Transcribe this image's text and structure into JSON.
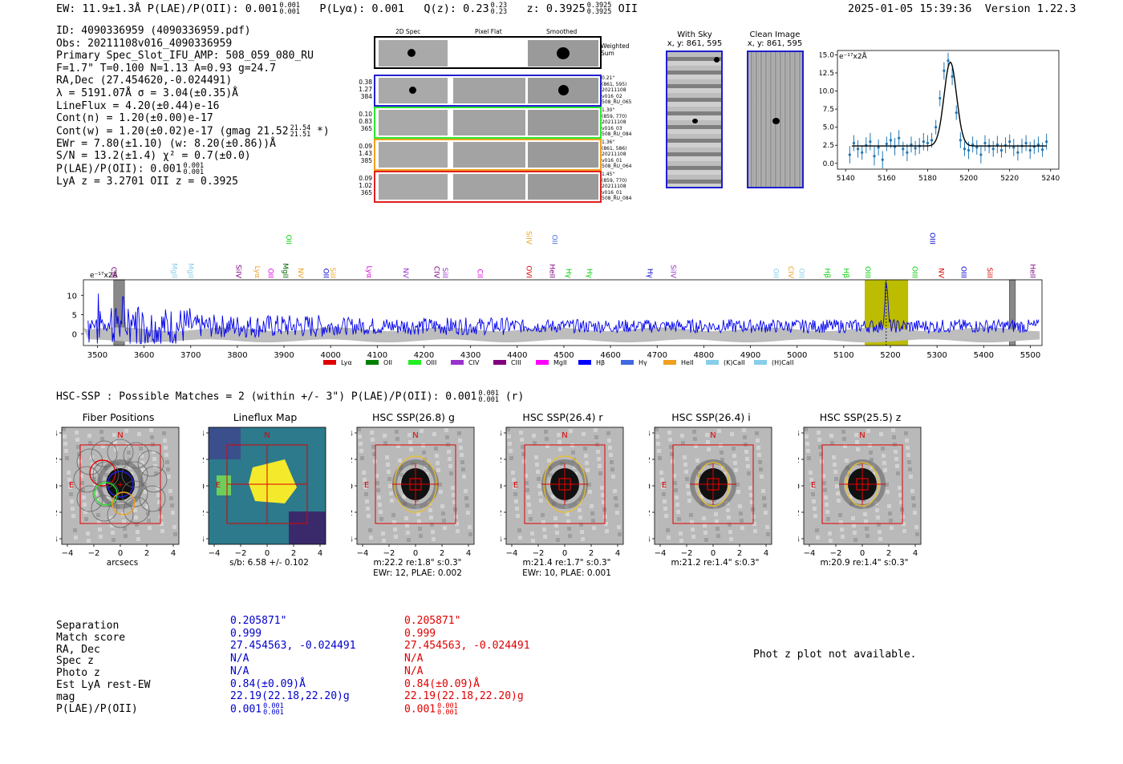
{
  "header": {
    "summary": "EW: 11.9±1.3Å   P(LAE)/P(OII): 0.001",
    "plae_frac": [
      "0.001",
      "0.001"
    ],
    "plya": "P(Lyα): 0.001",
    "qz": "Q(z): 0.23",
    "qz_frac": [
      "0.23",
      "0.23"
    ],
    "z": "z: 0.3925",
    "z_frac": [
      "0.3925",
      "0.3925"
    ],
    "z_line": "OII",
    "timestamp": "2025-01-05 15:39:36",
    "version": "Version 1.22.3"
  },
  "info": {
    "id": "ID: 4090336959 (4090336959.pdf)",
    "obs": "Obs: 20211108v016_4090336959",
    "primary": "Primary Spec_Slot_IFU_AMP: 508_059_080_RU",
    "params": "F=1.7\"  T=0.100  N=1.13  A=0.93  g=24.7",
    "radec": "RA,Dec (27.454620,-0.024491)",
    "lambda": "λ = 5191.07Å   σ = 3.04(±0.35)Å",
    "lineflux": "LineFlux = 4.20(±0.44)e-16",
    "contn": "Cont(n) = 1.20(±0.00)e-17",
    "contw": "Cont(w) = 1.20(±0.02)e-17 (gmag 21.52",
    "contw_frac": [
      "21.54",
      "21.51"
    ],
    "contw_end": "*)",
    "ewr": "EWr = 7.80(±1.10) (w: 8.20(±0.86))Å",
    "sn": "S/N = 13.2(±1.4)  χ² = 0.7(±0.0)",
    "plae": "P(LAE)/P(OII): 0.001",
    "plae_frac": [
      "0.001",
      "0.001"
    ],
    "lyaz": "LyA z = 3.2701   OII z = 0.3925"
  },
  "cutouts": {
    "headers": [
      "2D Spec",
      "Pixel Flat",
      "Smoothed"
    ],
    "weighted_label": "Weighted Sum",
    "rows": [
      {
        "left": [
          "0.38",
          "1.27",
          "384"
        ],
        "right": [
          "0.21\"",
          "(861, 595)",
          "20211108",
          "v016_02",
          "508_RU_065"
        ],
        "color": "#1f1fd0"
      },
      {
        "left": [
          "0.10",
          "0.83",
          "365"
        ],
        "right": [
          "1.30\"",
          "(859, 770)",
          "20211108",
          "v016_03",
          "508_RU_084"
        ],
        "color": "#2ee82e"
      },
      {
        "left": [
          "0.09",
          "1.43",
          "385"
        ],
        "right": [
          "1.36\"",
          "(861, 586)",
          "20211108",
          "v016_01",
          "508_RU_064"
        ],
        "color": "#f0a020"
      },
      {
        "left": [
          "0.09",
          "1.02",
          "365"
        ],
        "right": [
          "1.45\"",
          "(859, 770)",
          "20211108",
          "v016_01",
          "508_RU_084"
        ],
        "color": "#e02020"
      }
    ]
  },
  "sky": {
    "with_sky_title": "With Sky",
    "with_sky_xy": "x, y: 861, 595",
    "clean_title": "Clean Image",
    "clean_xy": "x, y: 861, 595"
  },
  "chart_data": [
    {
      "type": "scatter",
      "title": "",
      "ylabel": "e⁻¹⁷x2Å",
      "xlim": [
        5136,
        5244
      ],
      "ylim": [
        -0.8,
        15.6
      ],
      "xticks": [
        5140,
        5160,
        5180,
        5200,
        5220,
        5240
      ],
      "yticks": [
        0.0,
        2.5,
        5.0,
        7.5,
        10.0,
        12.5,
        15.0
      ],
      "ytick_labels": [
        "0.0",
        "2.5",
        "5.0",
        "7.5",
        "10.0",
        "12.5",
        "15.0"
      ],
      "fit": {
        "continuum": 2.4,
        "peak": 14.0,
        "center": 5191.07,
        "sigma": 3.04
      },
      "x": [
        5142,
        5144,
        5146,
        5148,
        5150,
        5152,
        5154,
        5156,
        5158,
        5160,
        5162,
        5164,
        5166,
        5168,
        5170,
        5172,
        5174,
        5176,
        5178,
        5180,
        5182,
        5184,
        5186,
        5188,
        5190,
        5192,
        5194,
        5196,
        5198,
        5200,
        5202,
        5204,
        5206,
        5208,
        5210,
        5212,
        5214,
        5216,
        5218,
        5220,
        5222,
        5224,
        5226,
        5228,
        5230,
        5232,
        5234,
        5236,
        5238
      ],
      "y": [
        1.2,
        2.8,
        2.0,
        1.5,
        2.5,
        3.0,
        1.0,
        2.2,
        0.5,
        2.7,
        3.2,
        2.3,
        3.5,
        2.0,
        1.5,
        2.6,
        2.1,
        2.4,
        3.0,
        2.8,
        3.2,
        5.0,
        9.0,
        12.8,
        14.2,
        12.0,
        7.0,
        3.2,
        2.0,
        1.8,
        2.6,
        2.2,
        1.2,
        2.8,
        2.4,
        2.0,
        2.6,
        1.8,
        2.5,
        3.0,
        2.2,
        1.5,
        2.4,
        2.8,
        1.8,
        2.3,
        2.6,
        1.9,
        3.0
      ],
      "yerr": [
        1.2,
        1.1,
        1.2,
        1.0,
        1.1,
        1.2,
        1.3,
        1.1,
        1.2,
        1.0,
        1.1,
        1.2,
        1.1,
        1.0,
        1.2,
        1.1,
        1.0,
        1.1,
        1.2,
        1.1,
        1.0,
        1.0,
        1.1,
        1.2,
        1.1,
        1.2,
        1.0,
        1.1,
        1.0,
        1.2,
        1.1,
        1.0,
        1.2,
        1.1,
        1.0,
        1.1,
        1.2,
        1.0,
        1.1,
        1.0,
        1.2,
        1.1,
        1.0,
        1.1,
        1.2,
        1.0,
        1.1,
        1.0,
        1.1
      ]
    },
    {
      "type": "line",
      "title": "",
      "ylabel": "e⁻¹⁷x2Å",
      "xlim": [
        3470,
        5525
      ],
      "ylim": [
        -3,
        14
      ],
      "xticks": [
        3500,
        3600,
        3700,
        3800,
        3900,
        4000,
        4100,
        4200,
        4300,
        4400,
        4500,
        4600,
        4700,
        4800,
        4900,
        5000,
        5100,
        5200,
        5300,
        5400,
        5500
      ],
      "yticks": [
        0,
        5,
        10
      ],
      "highlight_region": [
        5145,
        5238
      ],
      "marker_line": 5191,
      "masked_regions": [
        [
          3535,
          3558
        ],
        [
          5455,
          5468
        ]
      ],
      "lines_lower": [
        {
          "label": "CIII",
          "x": 3530,
          "color": "#800080"
        },
        {
          "label": "MgII",
          "x": 3660,
          "color": "#87ceeb"
        },
        {
          "label": "MgII",
          "x": 3695,
          "color": "#87ceeb"
        },
        {
          "label": "SiIV",
          "x": 3798,
          "color": "#800080"
        },
        {
          "label": "Lyα",
          "x": 3838,
          "color": "#f0a020"
        },
        {
          "label": "OII",
          "x": 3866,
          "color": "#e000e0"
        },
        {
          "label": "MgII",
          "x": 3898,
          "color": "#006400"
        },
        {
          "label": "NV",
          "x": 3931,
          "color": "#f0a020"
        },
        {
          "label": "OII",
          "x": 3985,
          "color": "#0000cc"
        },
        {
          "label": "SiII",
          "x": 4000,
          "color": "#f0a020"
        },
        {
          "label": "Lyα",
          "x": 4078,
          "color": "#e000e0"
        },
        {
          "label": "NV",
          "x": 4156,
          "color": "#9932cc"
        },
        {
          "label": "CIV",
          "x": 4222,
          "color": "#800080"
        },
        {
          "label": "SiII",
          "x": 4240,
          "color": "#9932cc"
        },
        {
          "label": "CII",
          "x": 4315,
          "color": "#e000e0"
        },
        {
          "label": "OVI",
          "x": 4420,
          "color": "#e00000"
        },
        {
          "label": "HeII",
          "x": 4470,
          "color": "#800080"
        },
        {
          "label": "Hγ",
          "x": 4505,
          "color": "#00cc00"
        },
        {
          "label": "Hγ",
          "x": 4550,
          "color": "#00cc00"
        },
        {
          "label": "Hγ",
          "x": 4680,
          "color": "#0000cc"
        },
        {
          "label": "SiIV",
          "x": 4730,
          "color": "#9932cc"
        },
        {
          "label": "OII",
          "x": 4950,
          "color": "#87ceeb"
        },
        {
          "label": "CIV",
          "x": 4982,
          "color": "#f0a020"
        },
        {
          "label": "OII",
          "x": 5005,
          "color": "#87ceeb"
        },
        {
          "label": "Hβ",
          "x": 5060,
          "color": "#00cc00"
        },
        {
          "label": "Hβ",
          "x": 5100,
          "color": "#00cc00"
        },
        {
          "label": "OIII",
          "x": 5147,
          "color": "#00cc00"
        },
        {
          "label": "OIII",
          "x": 5247,
          "color": "#00cc00"
        },
        {
          "label": "NV",
          "x": 5304,
          "color": "#e00000"
        },
        {
          "label": "OIII",
          "x": 5352,
          "color": "#0000cc"
        },
        {
          "label": "SiII",
          "x": 5408,
          "color": "#e00000"
        },
        {
          "label": "HeII",
          "x": 5500,
          "color": "#800080"
        }
      ],
      "lines_upper": [
        {
          "label": "OII",
          "x": 3905,
          "color": "#00cc00"
        },
        {
          "label": "SiIV",
          "x": 4420,
          "color": "#f0a020"
        },
        {
          "label": "OII",
          "x": 4475,
          "color": "#4169e1"
        },
        {
          "label": "OIII",
          "x": 5285,
          "color": "#0000cc"
        }
      ],
      "legend": [
        {
          "label": "Lyα",
          "color": "#e00000"
        },
        {
          "label": "OII",
          "color": "#008000"
        },
        {
          "label": "OIII",
          "color": "#22ee22"
        },
        {
          "label": "CIV",
          "color": "#9932cc"
        },
        {
          "label": "CIII",
          "color": "#800080"
        },
        {
          "label": "MgII",
          "color": "#ff00ff"
        },
        {
          "label": "Hβ",
          "color": "#0000ff"
        },
        {
          "label": "Hγ",
          "color": "#4169e1"
        },
        {
          "label": "HeII",
          "color": "#f0a020"
        },
        {
          "label": "(K)CaII",
          "color": "#87ceeb"
        },
        {
          "label": "(H)CaII",
          "color": "#87ceeb"
        }
      ]
    }
  ],
  "hsc": {
    "title": "HSC-SSP : Possible Matches = 2 (within +/- 3\")  P(LAE)/P(OII): 0.001",
    "title_frac": [
      "0.001",
      "0.001"
    ],
    "title_end": "(r)"
  },
  "thumbs": [
    {
      "title": "Fiber Positions",
      "sub1": "arcsecs",
      "sub2": "",
      "kind": "fiber"
    },
    {
      "title": "Lineflux Map",
      "sub1": "s/b: 6.58 +/- 0.102",
      "sub2": "",
      "kind": "flux"
    },
    {
      "title": "HSC SSP(26.8) g",
      "sub1": "m:22.2  re:1.8\"  s:0.3\"",
      "sub2": "EWr: 12, PLAE: 0.002",
      "kind": "hsc"
    },
    {
      "title": "HSC SSP(26.4) r",
      "sub1": "m:21.4  re:1.7\"  s:0.3\"",
      "sub2": "EWr: 10, PLAE: 0.001",
      "kind": "hsc"
    },
    {
      "title": "HSC SSP(26.4) i",
      "sub1": "m:21.2  re:1.4\"  s:0.3\"",
      "sub2": "",
      "kind": "hsc"
    },
    {
      "title": "HSC SSP(25.5) z",
      "sub1": "m:20.9  re:1.4\"  s:0.3\"",
      "sub2": "",
      "kind": "hsc"
    }
  ],
  "thumb_axis": {
    "ticks": [
      "−4",
      "−2",
      "0",
      "2",
      "4"
    ],
    "north": "N",
    "east": "E"
  },
  "table": {
    "labels": [
      "Separation",
      "Match score",
      "RA, Dec",
      "Spec z",
      "Photo z",
      "Est LyA rest-EW",
      "mag",
      "P(LAE)/P(OII)"
    ],
    "col_blue": [
      "0.205871\"",
      "0.999",
      "27.454563, -0.024491",
      "N/A",
      "N/A",
      "0.84(±0.09)Å",
      "22.19(22.18,22.20)g",
      "0.001"
    ],
    "col_red": [
      "0.205871\"",
      "0.999",
      "27.454563, -0.024491",
      "N/A",
      "N/A",
      "0.84(±0.09)Å",
      "22.19(22.18,22.20)g",
      "0.001"
    ],
    "plae_frac": [
      "0.001",
      "0.001"
    ],
    "photz_note": "Phot z plot not available."
  }
}
